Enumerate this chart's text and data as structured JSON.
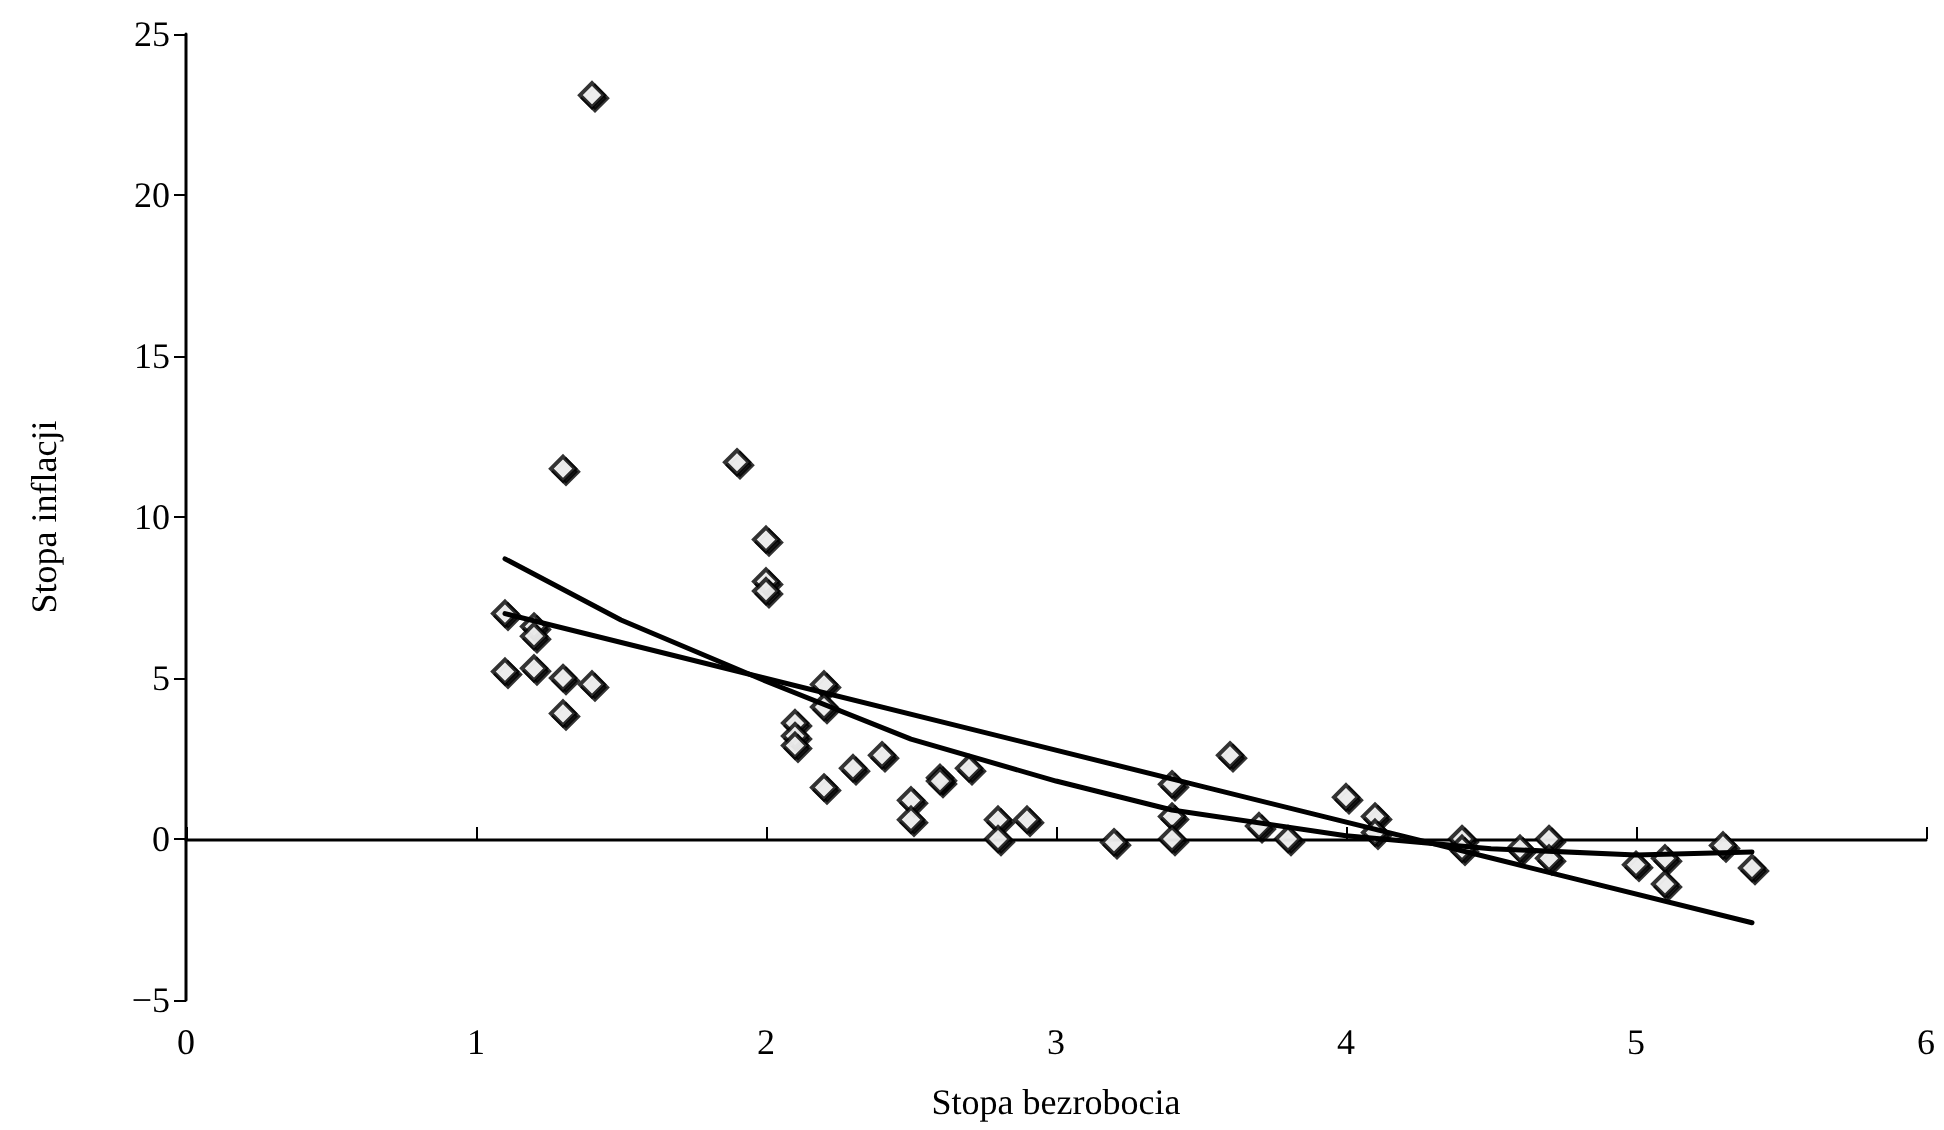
{
  "chart_data": {
    "type": "scatter",
    "xlabel": "Stopa bezrobocia",
    "ylabel": "Stopa inflacji",
    "xlim": [
      0,
      6
    ],
    "xticks": [
      0,
      1,
      2,
      3,
      4,
      5,
      6
    ],
    "ylim": [
      -5,
      25
    ],
    "yticks": [
      -5,
      0,
      5,
      10,
      15,
      20,
      25
    ],
    "marker": "diamond",
    "series": [
      {
        "color": "#000000",
        "x": [
          1.1,
          1.1,
          1.2,
          1.2,
          1.2,
          1.3,
          1.3,
          1.4,
          1.3,
          1.4,
          1.9,
          2.0,
          2.0,
          2.0,
          2.1,
          2.1,
          2.1,
          2.2,
          2.2,
          2.2,
          2.3,
          2.4,
          2.5,
          2.5,
          2.6,
          2.6,
          2.7,
          2.8,
          2.8,
          2.9,
          3.2,
          3.4,
          3.4,
          3.4,
          3.6,
          3.7,
          3.8,
          4.0,
          4.1,
          4.1,
          4.4,
          4.4,
          4.6,
          4.7,
          4.7,
          5.0,
          5.1,
          5.1,
          5.3,
          5.4
        ],
        "values": [
          7.0,
          5.2,
          6.6,
          6.3,
          5.3,
          5.0,
          3.9,
          4.8,
          11.5,
          23.1,
          11.7,
          9.3,
          8.0,
          7.7,
          3.6,
          3.2,
          2.9,
          4.8,
          4.1,
          1.6,
          2.2,
          2.6,
          1.2,
          0.6,
          1.9,
          1.8,
          2.2,
          0.6,
          0.0,
          0.6,
          -0.1,
          1.7,
          0.7,
          0.0,
          2.6,
          0.4,
          0.0,
          1.3,
          0.7,
          0.2,
          0.0,
          -0.3,
          -0.3,
          0.0,
          -0.6,
          -0.8,
          -0.6,
          -1.4,
          -0.2,
          -0.9
        ]
      },
      {
        "type": "line",
        "color": "#000000",
        "marker": "none",
        "line_style": "solid",
        "x": [
          1.1,
          5.4
        ],
        "values": [
          7.0,
          -2.6
        ]
      },
      {
        "type": "line",
        "color": "#000000",
        "marker": "none",
        "line_style": "solid",
        "x": [
          1.1,
          1.5,
          2.0,
          2.5,
          3.0,
          3.4,
          4.0,
          4.5,
          5.0,
          5.4
        ],
        "values": [
          8.7,
          6.8,
          4.9,
          3.1,
          1.8,
          0.9,
          0.1,
          -0.3,
          -0.5,
          -0.4
        ]
      }
    ]
  }
}
